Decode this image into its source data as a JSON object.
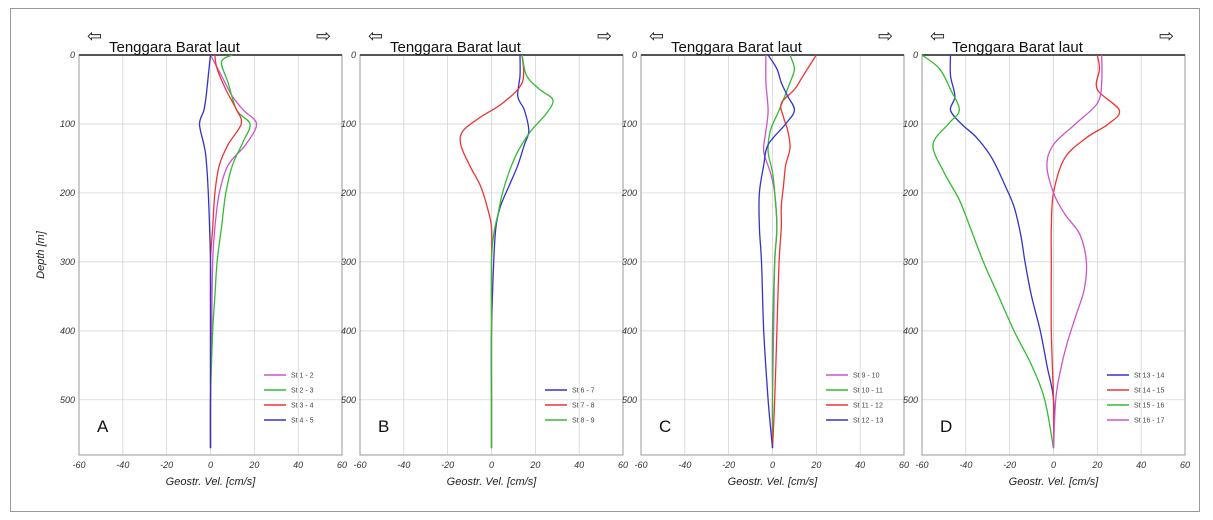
{
  "figure": {
    "ylabel": "Depth [m]",
    "xlabel": "Geostr. Vel. [cm/s]",
    "title": "Tenggara Barat laut",
    "arrow_left": "⇦",
    "arrow_right": "⇨"
  },
  "colors": {
    "pink": "#cc55cc",
    "green": "#33bb33",
    "red": "#ee3333",
    "blue": "#3333cc",
    "grid": "#cfcfcf"
  },
  "chart_data": [
    {
      "type": "line",
      "letter": "A",
      "xlim": [
        -60,
        60
      ],
      "ylim": [
        0,
        580
      ],
      "xticks": [
        "-60",
        "-40",
        "-20",
        "0",
        "20",
        "40",
        "60"
      ],
      "yticks": [
        "0",
        "100",
        "200",
        "300",
        "400",
        "500"
      ],
      "yvals": [
        0,
        100,
        200,
        300,
        400,
        500
      ],
      "series": [
        {
          "name": "St 1 - 2",
          "color": "pink",
          "points": [
            [
              0,
              0
            ],
            [
              5,
              30
            ],
            [
              10,
              60
            ],
            [
              15,
              80
            ],
            [
              21,
              100
            ],
            [
              16,
              130
            ],
            [
              8,
              160
            ],
            [
              4,
              200
            ],
            [
              2,
              250
            ],
            [
              1,
              300
            ],
            [
              0.5,
              400
            ],
            [
              0,
              500
            ],
            [
              0,
              570
            ]
          ]
        },
        {
          "name": "St 2 - 3",
          "color": "green",
          "points": [
            [
              10,
              0
            ],
            [
              5,
              10
            ],
            [
              8,
              40
            ],
            [
              12,
              80
            ],
            [
              18,
              100
            ],
            [
              15,
              125
            ],
            [
              10,
              160
            ],
            [
              7,
              200
            ],
            [
              5,
              250
            ],
            [
              3,
              300
            ],
            [
              2,
              350
            ],
            [
              1,
              400
            ],
            [
              0,
              500
            ],
            [
              0,
              570
            ]
          ]
        },
        {
          "name": "St 3 - 4",
          "color": "red",
          "points": [
            [
              2,
              0
            ],
            [
              3,
              20
            ],
            [
              7,
              50
            ],
            [
              12,
              80
            ],
            [
              14,
              100
            ],
            [
              8,
              130
            ],
            [
              4,
              160
            ],
            [
              2,
              200
            ],
            [
              1,
              250
            ],
            [
              0,
              300
            ],
            [
              0,
              400
            ],
            [
              0,
              500
            ],
            [
              0,
              570
            ]
          ]
        },
        {
          "name": "St 4 - 5",
          "color": "blue",
          "points": [
            [
              0,
              0
            ],
            [
              -1,
              30
            ],
            [
              -2,
              60
            ],
            [
              -3,
              80
            ],
            [
              -5,
              100
            ],
            [
              -3,
              130
            ],
            [
              -2,
              150
            ],
            [
              -1,
              200
            ],
            [
              0,
              300
            ],
            [
              0,
              400
            ],
            [
              0,
              500
            ],
            [
              0,
              570
            ]
          ]
        }
      ]
    },
    {
      "type": "line",
      "letter": "B",
      "xlim": [
        -60,
        60
      ],
      "ylim": [
        0,
        580
      ],
      "xticks": [
        "-60",
        "-40",
        "-20",
        "0",
        "20",
        "40",
        "60"
      ],
      "yticks": [
        "0",
        "100",
        "200",
        "300",
        "400",
        "500"
      ],
      "yvals": [
        0,
        100,
        200,
        300,
        400,
        500
      ],
      "series": [
        {
          "name": "St 6 - 7",
          "color": "blue",
          "points": [
            [
              13,
              0
            ],
            [
              13,
              30
            ],
            [
              12,
              60
            ],
            [
              15,
              80
            ],
            [
              17,
              110
            ],
            [
              15,
              130
            ],
            [
              12,
              160
            ],
            [
              8,
              190
            ],
            [
              4,
              220
            ],
            [
              2,
              250
            ],
            [
              1,
              300
            ],
            [
              0,
              400
            ],
            [
              0,
              500
            ],
            [
              0,
              570
            ]
          ]
        },
        {
          "name": "St 7 - 8",
          "color": "red",
          "points": [
            [
              14,
              0
            ],
            [
              14,
              40
            ],
            [
              5,
              70
            ],
            [
              -5,
              90
            ],
            [
              -13,
              110
            ],
            [
              -14,
              130
            ],
            [
              -10,
              160
            ],
            [
              -5,
              190
            ],
            [
              -2,
              220
            ],
            [
              0,
              250
            ],
            [
              0,
              300
            ],
            [
              0,
              400
            ],
            [
              0,
              500
            ],
            [
              0,
              570
            ]
          ]
        },
        {
          "name": "St 8 - 9",
          "color": "green",
          "points": [
            [
              14,
              0
            ],
            [
              16,
              30
            ],
            [
              22,
              50
            ],
            [
              28,
              65
            ],
            [
              25,
              85
            ],
            [
              18,
              110
            ],
            [
              12,
              140
            ],
            [
              8,
              170
            ],
            [
              5,
              200
            ],
            [
              3,
              230
            ],
            [
              1,
              260
            ],
            [
              0,
              300
            ],
            [
              0,
              400
            ],
            [
              0,
              500
            ],
            [
              0,
              570
            ]
          ]
        }
      ]
    },
    {
      "type": "line",
      "letter": "C",
      "xlim": [
        -60,
        60
      ],
      "ylim": [
        0,
        580
      ],
      "xticks": [
        "-60",
        "-40",
        "-20",
        "0",
        "20",
        "40",
        "60"
      ],
      "yticks": [
        "0",
        "100",
        "200",
        "300",
        "400",
        "500"
      ],
      "yvals": [
        0,
        100,
        200,
        300,
        400,
        500
      ],
      "series": [
        {
          "name": "St 9 - 10",
          "color": "pink",
          "points": [
            [
              -3,
              0
            ],
            [
              -3,
              40
            ],
            [
              -2,
              80
            ],
            [
              -3,
              110
            ],
            [
              -4,
              140
            ],
            [
              -1,
              170
            ],
            [
              1,
              200
            ],
            [
              2,
              250
            ],
            [
              1,
              300
            ],
            [
              0.5,
              400
            ],
            [
              0,
              500
            ],
            [
              0,
              570
            ]
          ]
        },
        {
          "name": "St 10 - 11",
          "color": "green",
          "points": [
            [
              8,
              0
            ],
            [
              10,
              20
            ],
            [
              8,
              40
            ],
            [
              3,
              80
            ],
            [
              -1,
              110
            ],
            [
              -2,
              140
            ],
            [
              0,
              170
            ],
            [
              1,
              200
            ],
            [
              2,
              250
            ],
            [
              1,
              300
            ],
            [
              0,
              400
            ],
            [
              0,
              500
            ],
            [
              0,
              570
            ]
          ]
        },
        {
          "name": "St 11 - 12",
          "color": "red",
          "points": [
            [
              20,
              0
            ],
            [
              14,
              30
            ],
            [
              10,
              50
            ],
            [
              4,
              70
            ],
            [
              5,
              90
            ],
            [
              7,
              110
            ],
            [
              8,
              135
            ],
            [
              6,
              160
            ],
            [
              5,
              190
            ],
            [
              4,
              220
            ],
            [
              4,
              250
            ],
            [
              3,
              300
            ],
            [
              2,
              400
            ],
            [
              1,
              500
            ],
            [
              0,
              570
            ]
          ]
        },
        {
          "name": "St 12 - 13",
          "color": "blue",
          "points": [
            [
              -2,
              0
            ],
            [
              2,
              20
            ],
            [
              4,
              40
            ],
            [
              7,
              60
            ],
            [
              10,
              80
            ],
            [
              6,
              100
            ],
            [
              -2,
              130
            ],
            [
              -4,
              160
            ],
            [
              -6,
              200
            ],
            [
              -6,
              250
            ],
            [
              -5,
              300
            ],
            [
              -4,
              400
            ],
            [
              -2,
              500
            ],
            [
              0,
              570
            ]
          ]
        }
      ]
    },
    {
      "type": "line",
      "letter": "D",
      "xlim": [
        -60,
        60
      ],
      "ylim": [
        0,
        580
      ],
      "xticks": [
        "-60",
        "-40",
        "-20",
        "0",
        "20",
        "40",
        "60"
      ],
      "yticks": [
        "0",
        "100",
        "200",
        "300",
        "400",
        "500"
      ],
      "yvals": [
        0,
        100,
        200,
        300,
        400,
        500
      ],
      "series": [
        {
          "name": "St 13 - 14",
          "color": "blue",
          "points": [
            [
              -47,
              0
            ],
            [
              -47,
              30
            ],
            [
              -45,
              60
            ],
            [
              -47,
              80
            ],
            [
              -42,
              100
            ],
            [
              -35,
              120
            ],
            [
              -28,
              150
            ],
            [
              -22,
              190
            ],
            [
              -18,
              220
            ],
            [
              -15,
              260
            ],
            [
              -13,
              300
            ],
            [
              -10,
              350
            ],
            [
              -6,
              400
            ],
            [
              -3,
              450
            ],
            [
              0,
              500
            ],
            [
              0,
              570
            ]
          ]
        },
        {
          "name": "St 14 - 15",
          "color": "red",
          "points": [
            [
              20,
              0
            ],
            [
              21,
              20
            ],
            [
              20,
              50
            ],
            [
              30,
              80
            ],
            [
              25,
              100
            ],
            [
              15,
              120
            ],
            [
              5,
              150
            ],
            [
              0,
              200
            ],
            [
              -1,
              250
            ],
            [
              -1,
              300
            ],
            [
              -1,
              400
            ],
            [
              0,
              500
            ],
            [
              0,
              570
            ]
          ]
        },
        {
          "name": "St 15 - 16",
          "color": "green",
          "points": [
            [
              -60,
              0
            ],
            [
              -52,
              20
            ],
            [
              -47,
              50
            ],
            [
              -43,
              80
            ],
            [
              -48,
              100
            ],
            [
              -55,
              130
            ],
            [
              -50,
              170
            ],
            [
              -43,
              210
            ],
            [
              -38,
              250
            ],
            [
              -32,
              300
            ],
            [
              -25,
              350
            ],
            [
              -18,
              400
            ],
            [
              -10,
              450
            ],
            [
              -4,
              500
            ],
            [
              0,
              570
            ]
          ]
        },
        {
          "name": "St 16 - 17",
          "color": "pink",
          "points": [
            [
              22,
              0
            ],
            [
              22,
              40
            ],
            [
              20,
              70
            ],
            [
              10,
              100
            ],
            [
              0,
              130
            ],
            [
              -3,
              160
            ],
            [
              0,
              200
            ],
            [
              5,
              230
            ],
            [
              12,
              260
            ],
            [
              15,
              300
            ],
            [
              14,
              340
            ],
            [
              10,
              380
            ],
            [
              6,
              420
            ],
            [
              3,
              460
            ],
            [
              1,
              500
            ],
            [
              0,
              570
            ]
          ]
        }
      ]
    }
  ]
}
